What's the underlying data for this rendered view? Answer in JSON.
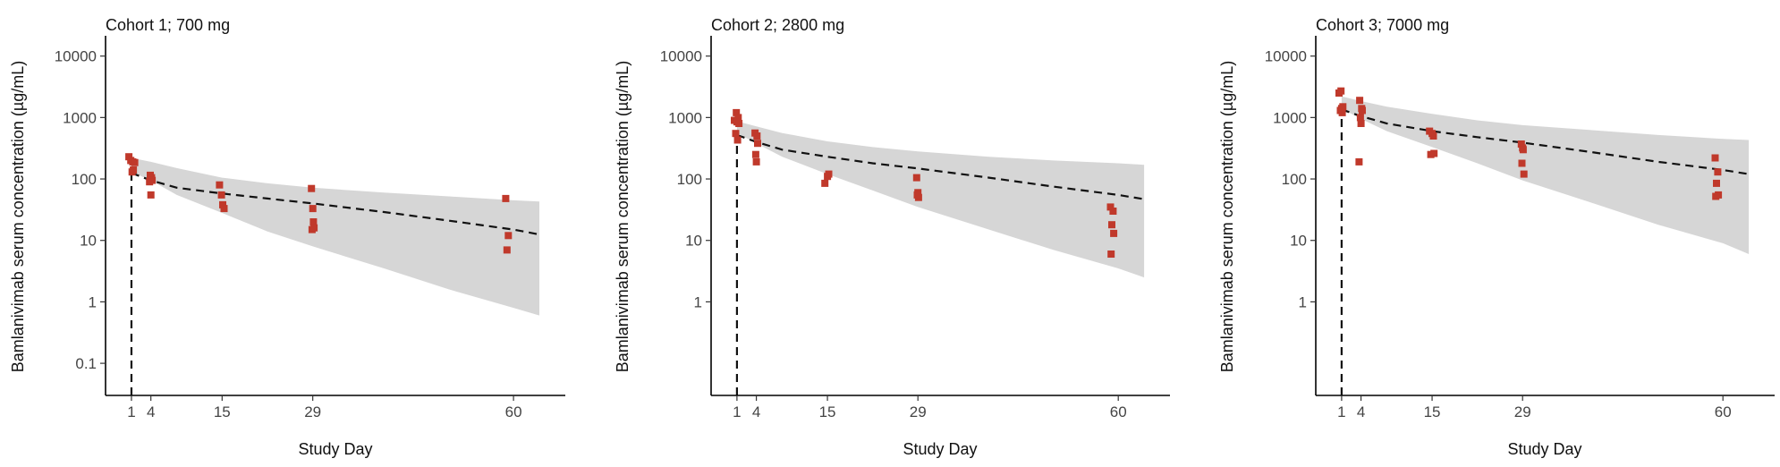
{
  "chart_data": [
    {
      "type": "scatter",
      "title": "Cohort 1; 700 mg",
      "xlabel": "Study Day",
      "ylabel": "Bamlanivimab serum concentration (µg/mL)",
      "xticks": [
        1,
        4,
        15,
        29,
        60
      ],
      "xlim": [
        -3,
        68
      ],
      "yscale": "log",
      "yticks": [
        0.1,
        1,
        10,
        100,
        1000,
        10000
      ],
      "ytick_labels": [
        "0.1",
        "1",
        "10",
        "100",
        "1000",
        "10000"
      ],
      "ylim": [
        0.03,
        20000
      ],
      "grid": false,
      "dose_day": 1,
      "median": {
        "x": [
          1,
          4,
          8,
          15,
          22,
          29,
          40,
          50,
          60,
          64
        ],
        "y": [
          125,
          95,
          72,
          58,
          48,
          40,
          29,
          21,
          15,
          12.5
        ]
      },
      "prediction_band": {
        "x": [
          1,
          4,
          8,
          15,
          22,
          29,
          40,
          50,
          60,
          64
        ],
        "lower": [
          130,
          95,
          55,
          28,
          14,
          8,
          3.5,
          1.6,
          0.8,
          0.6
        ],
        "upper": [
          220,
          190,
          150,
          105,
          85,
          72,
          60,
          52,
          45,
          43
        ]
      },
      "observed": {
        "x": [
          0.6,
          0.9,
          1.2,
          1.5,
          1.1,
          1.3,
          3.9,
          4.1,
          4.2,
          3.8,
          4.0,
          14.6,
          14.9,
          15.1,
          15.3,
          28.8,
          29.0,
          29.1,
          28.9,
          29.2,
          58.8,
          59.2,
          59.0
        ],
        "y": [
          230,
          200,
          190,
          185,
          130,
          140,
          115,
          105,
          95,
          90,
          55,
          80,
          55,
          38,
          33,
          70,
          33,
          20,
          15,
          16,
          48,
          12,
          7
        ]
      }
    },
    {
      "type": "scatter",
      "title": "Cohort 2; 2800 mg",
      "xlabel": "Study Day",
      "ylabel": "Bamlanivimab serum concentration (µg/mL)",
      "xticks": [
        1,
        4,
        15,
        29,
        60
      ],
      "xlim": [
        -3,
        68
      ],
      "yscale": "log",
      "yticks": [
        1,
        10,
        100,
        1000,
        10000
      ],
      "ytick_labels": [
        "1",
        "10",
        "100",
        "1000",
        "10000"
      ],
      "ylim": [
        0.03,
        20000
      ],
      "grid": false,
      "dose_day": 1,
      "median": {
        "x": [
          1,
          4,
          8,
          15,
          22,
          29,
          40,
          50,
          60,
          64
        ],
        "y": [
          520,
          400,
          300,
          230,
          180,
          148,
          105,
          75,
          55,
          47
        ]
      },
      "prediction_band": {
        "x": [
          1,
          4,
          8,
          15,
          22,
          29,
          40,
          50,
          60,
          64
        ],
        "lower": [
          560,
          380,
          230,
          120,
          65,
          35,
          15,
          7,
          3.5,
          2.5
        ],
        "upper": [
          870,
          720,
          560,
          410,
          330,
          280,
          230,
          200,
          180,
          170
        ]
      },
      "observed": {
        "x": [
          0.6,
          0.9,
          1.2,
          1.0,
          1.3,
          0.8,
          1.1,
          3.8,
          4.1,
          4.2,
          3.9,
          4.0,
          14.6,
          15.0,
          15.2,
          28.8,
          29.0,
          29.1,
          28.9,
          58.8,
          59.2,
          59.0,
          59.3,
          58.9
        ],
        "y": [
          900,
          1200,
          1000,
          850,
          800,
          550,
          430,
          560,
          500,
          380,
          250,
          190,
          85,
          110,
          120,
          105,
          60,
          50,
          55,
          35,
          30,
          18,
          13,
          6
        ]
      }
    },
    {
      "type": "scatter",
      "title": "Cohort 3; 7000 mg",
      "xlabel": "Study Day",
      "ylabel": "Bamlanivimab serum concentration (µg/mL)",
      "xticks": [
        1,
        4,
        15,
        29,
        60
      ],
      "xlim": [
        -3,
        68
      ],
      "yscale": "log",
      "yticks": [
        1,
        10,
        100,
        1000,
        10000
      ],
      "ytick_labels": [
        "1",
        "10",
        "100",
        "1000",
        "10000"
      ],
      "ylim": [
        0.03,
        20000
      ],
      "grid": false,
      "dose_day": 1,
      "median": {
        "x": [
          1,
          4,
          8,
          15,
          22,
          29,
          40,
          50,
          60,
          64
        ],
        "y": [
          1350,
          1050,
          800,
          600,
          480,
          390,
          270,
          190,
          140,
          120
        ]
      },
      "prediction_band": {
        "x": [
          1,
          4,
          8,
          15,
          22,
          29,
          40,
          50,
          60,
          64
        ],
        "lower": [
          1400,
          950,
          600,
          330,
          180,
          95,
          40,
          18,
          9,
          6
        ],
        "upper": [
          2200,
          1850,
          1500,
          1150,
          900,
          750,
          620,
          520,
          450,
          430
        ]
      },
      "observed": {
        "x": [
          0.6,
          0.9,
          1.2,
          0.8,
          1.1,
          1.0,
          3.8,
          4.1,
          4.2,
          3.9,
          4.0,
          3.7,
          14.6,
          15.0,
          15.2,
          14.8,
          15.3,
          28.8,
          29.0,
          29.1,
          28.9,
          29.2,
          58.8,
          59.2,
          59.0,
          59.3,
          58.9
        ],
        "y": [
          2500,
          2700,
          1500,
          1300,
          1200,
          1400,
          1900,
          1400,
          1300,
          1000,
          800,
          190,
          600,
          550,
          500,
          250,
          260,
          370,
          320,
          300,
          180,
          120,
          220,
          130,
          85,
          55,
          52
        ]
      }
    }
  ]
}
